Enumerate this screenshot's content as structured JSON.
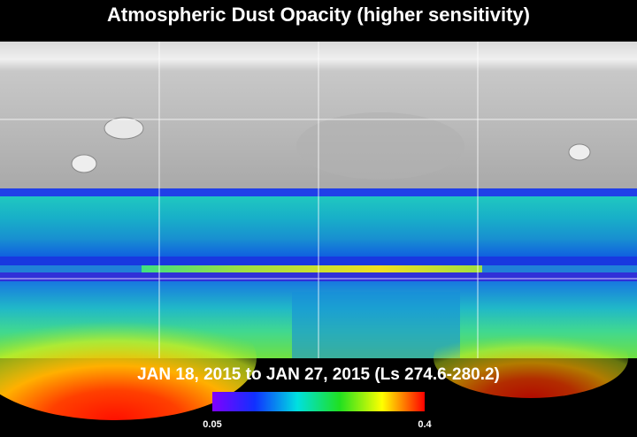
{
  "title": "Atmospheric Dust Opacity (higher sensitivity)",
  "subtitle": "JAN 18, 2015 to JAN 27, 2015 (Ls 274.6-280.2)",
  "colorbar": {
    "ticks": [
      0.05,
      0.4
    ]
  }
}
